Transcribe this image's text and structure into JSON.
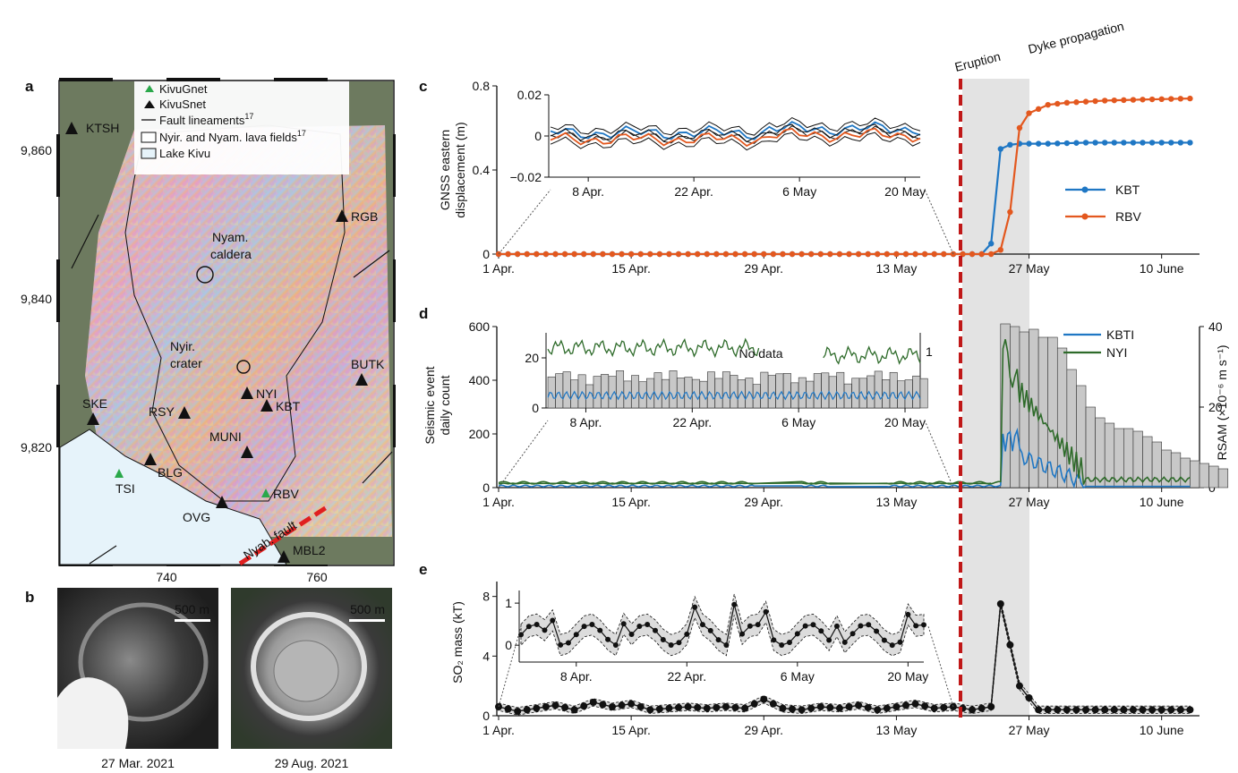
{
  "panels": {
    "a": "a",
    "b": "b",
    "c": "c",
    "d": "d",
    "e": "e"
  },
  "annotations": {
    "eruption": "Eruption",
    "dyke": "Dyke propagation",
    "no_data": "No data"
  },
  "map": {
    "legend": [
      {
        "label": "KivuGnet",
        "marker": "triangle",
        "color": "#2aa84a"
      },
      {
        "label": "KivuSnet",
        "marker": "triangle",
        "color": "#111111"
      },
      {
        "label": "Fault lineaments",
        "sup": "17",
        "marker": "line",
        "color": "#111111"
      },
      {
        "label": "Nyir. and Nyam. lava fields",
        "sup": "17",
        "marker": "box",
        "color": "#ffffff"
      },
      {
        "label": "Lake Kivu",
        "marker": "box",
        "color": "#e6f3fa"
      }
    ],
    "y_ticks": [
      "9,860",
      "9,840",
      "9,820"
    ],
    "x_ticks": [
      "740",
      "760"
    ],
    "places": [
      "Nyam.",
      "caldera",
      "Nyir.",
      "crater"
    ],
    "fault_label": "Nyab. fault",
    "stations": [
      {
        "name": "KTSH",
        "net": "S"
      },
      {
        "name": "RGB",
        "net": "S"
      },
      {
        "name": "NYI",
        "net": "S"
      },
      {
        "name": "BUTK",
        "net": "S"
      },
      {
        "name": "SKE",
        "net": "S"
      },
      {
        "name": "RSY",
        "net": "S"
      },
      {
        "name": "KBT",
        "net": "S"
      },
      {
        "name": "MUNI",
        "net": "S"
      },
      {
        "name": "BLG",
        "net": "S"
      },
      {
        "name": "TSI",
        "net": "G"
      },
      {
        "name": "OVG",
        "net": "S"
      },
      {
        "name": "RBV",
        "net": "G"
      },
      {
        "name": "MBL2",
        "net": "S"
      }
    ],
    "colors": {
      "lake": "#e6f3fa",
      "fault": "#e02020",
      "gnet": "#2aa84a",
      "snet": "#111111"
    }
  },
  "photos": [
    {
      "date": "27 Mar. 2021",
      "scale": "500 m"
    },
    {
      "date": "29 Aug. 2021",
      "scale": "500 m"
    }
  ],
  "chart_data": [
    {
      "id": "c",
      "type": "line",
      "ylabel": "GNSS eastern displacement (m)",
      "x_ticks": [
        "1 Apr.",
        "15 Apr.",
        "29 Apr.",
        "13 May",
        "27 May",
        "10 June"
      ],
      "y_ticks": [
        "0",
        "0.4",
        "0.8"
      ],
      "ylim": [
        0,
        0.8
      ],
      "xlim_days": [
        0,
        74
      ],
      "legend": [
        "KBT",
        "RBV"
      ],
      "colors": {
        "KBT": "#1f77c4",
        "RBV": "#e3581f"
      },
      "series": [
        {
          "name": "KBT",
          "points": [
            [
              0,
              0
            ],
            [
              51,
              0
            ],
            [
              52,
              0.05
            ],
            [
              53,
              0.5
            ],
            [
              54,
              0.52
            ],
            [
              55,
              0.525
            ],
            [
              56,
              0.525
            ],
            [
              58,
              0.525
            ],
            [
              62,
              0.53
            ],
            [
              66,
              0.53
            ],
            [
              70,
              0.53
            ],
            [
              73,
              0.53
            ]
          ]
        },
        {
          "name": "RBV",
          "points": [
            [
              0,
              0
            ],
            [
              52,
              0
            ],
            [
              53,
              0.02
            ],
            [
              54,
              0.2
            ],
            [
              55,
              0.6
            ],
            [
              56,
              0.67
            ],
            [
              57,
              0.69
            ],
            [
              58,
              0.71
            ],
            [
              60,
              0.72
            ],
            [
              64,
              0.73
            ],
            [
              68,
              0.735
            ],
            [
              73,
              0.74
            ]
          ]
        }
      ],
      "inset": {
        "x_ticks": [
          "8 Apr.",
          "22 Apr.",
          "6 May",
          "20 May"
        ],
        "y_ticks": [
          "0.02",
          "0",
          "−0.02"
        ],
        "ylim": [
          -0.02,
          0.02
        ]
      }
    },
    {
      "id": "d",
      "type": "bar",
      "ylabel": "Seismic event daily count",
      "ylabel_right": "RSAM (×10⁻⁶ m s⁻¹)",
      "x_ticks": [
        "1 Apr.",
        "15 Apr.",
        "29 Apr.",
        "13 May",
        "27 May",
        "10 June"
      ],
      "y_ticks": [
        "0",
        "200",
        "400",
        "600"
      ],
      "y_ticks_right": [
        "0",
        "20",
        "40"
      ],
      "ylim": [
        0,
        600
      ],
      "legend": [
        "KBTI",
        "NYI"
      ],
      "colors": {
        "KBTI": "#1f77c4",
        "NYI": "#2e6b2a",
        "bars": "#c8c8c8"
      },
      "bar_counts_after": [
        610,
        600,
        580,
        590,
        560,
        560,
        520,
        440,
        380,
        300,
        260,
        240,
        220,
        220,
        210,
        190,
        170,
        140,
        130,
        110,
        100,
        90,
        80,
        70
      ],
      "inset": {
        "x_ticks": [
          "8 Apr.",
          "22 Apr.",
          "6 May",
          "20 May"
        ],
        "y_ticks": [
          "0",
          "20"
        ],
        "y_ticks_right": [
          "1"
        ]
      }
    },
    {
      "id": "e",
      "type": "line",
      "ylabel": "SO₂ mass (kT)",
      "x_ticks": [
        "1 Apr.",
        "15 Apr.",
        "29 Apr.",
        "13 May",
        "27 May",
        "10 June"
      ],
      "y_ticks": [
        "0",
        "4",
        "8"
      ],
      "ylim": [
        0,
        9
      ],
      "series": [
        {
          "name": "SO2",
          "points": [
            [
              0,
              0.6
            ],
            [
              2,
              0.3
            ],
            [
              4,
              0.5
            ],
            [
              6,
              0.7
            ],
            [
              8,
              0.4
            ],
            [
              10,
              0.9
            ],
            [
              12,
              0.6
            ],
            [
              14,
              0.8
            ],
            [
              16,
              0.4
            ],
            [
              18,
              0.5
            ],
            [
              20,
              0.6
            ],
            [
              22,
              0.5
            ],
            [
              24,
              0.6
            ],
            [
              26,
              0.5
            ],
            [
              28,
              1.1
            ],
            [
              30,
              0.5
            ],
            [
              32,
              0.4
            ],
            [
              34,
              0.6
            ],
            [
              36,
              0.5
            ],
            [
              38,
              0.7
            ],
            [
              40,
              0.4
            ],
            [
              42,
              0.6
            ],
            [
              44,
              0.8
            ],
            [
              46,
              0.5
            ],
            [
              48,
              0.6
            ],
            [
              50,
              0.4
            ],
            [
              52,
              0.6
            ],
            [
              53,
              7.5
            ],
            [
              55,
              2.0
            ],
            [
              57,
              0.4
            ],
            [
              60,
              0.4
            ],
            [
              64,
              0.4
            ],
            [
              68,
              0.4
            ],
            [
              73,
              0.4
            ]
          ]
        }
      ],
      "inset": {
        "x_ticks": [
          "8 Apr.",
          "22 Apr.",
          "6 May",
          "20 May"
        ],
        "y_ticks": [
          "0",
          "1"
        ],
        "ylim": [
          -0.4,
          1.3
        ]
      }
    }
  ]
}
